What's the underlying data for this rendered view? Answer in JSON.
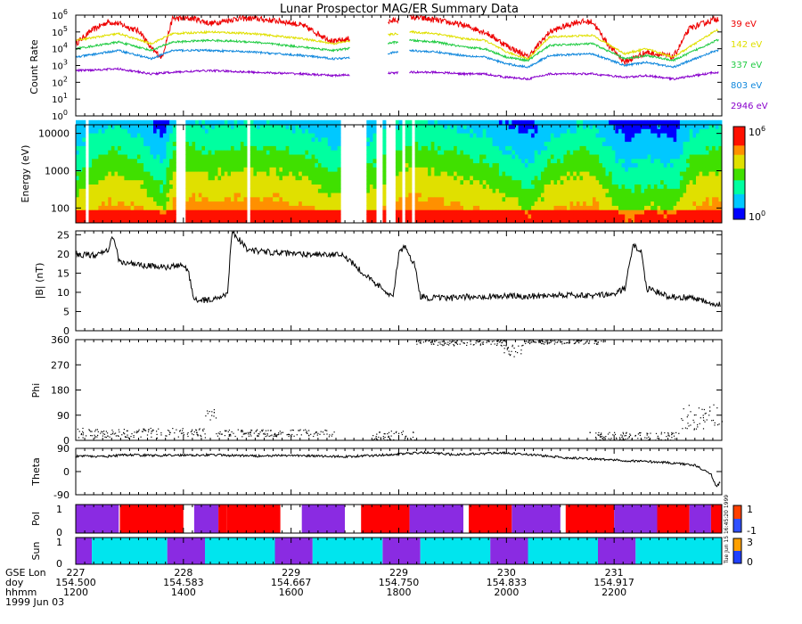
{
  "title": "Lunar Prospector MAG/ER Summary Data",
  "timestamp_side": "Tue Jun 15 16:45:20 1999",
  "footer": {
    "row_labels": [
      "GSE Lon",
      "doy",
      "hhmm",
      "1999 Jun 03"
    ],
    "gse_lon": [
      "227",
      "228",
      "229",
      "229",
      "230",
      "231"
    ],
    "doy": [
      "154.500",
      "154.583",
      "154.667",
      "154.750",
      "154.833",
      "154.917"
    ],
    "hhmm": [
      "1200",
      "1400",
      "1600",
      "1800",
      "2000",
      "2200"
    ]
  },
  "colors": {
    "e39": "#ee0000",
    "e142": "#e0e000",
    "e337": "#22cc44",
    "e803": "#1188dd",
    "e2946": "#8800cc",
    "pol_pos": "#ff0000",
    "pol_neg": "#8a2be2",
    "sun_day": "#00e5ee",
    "sun_night": "#8a2be2"
  },
  "chart_data": [
    {
      "type": "line",
      "panel": "count-rate",
      "title": "Lunar Prospector MAG/ER Summary Data",
      "ylabel": "Count Rate",
      "y_scale": "log",
      "ylim": [
        1,
        1000000
      ],
      "yticks": [
        "10^0",
        "10^1",
        "10^2",
        "10^3",
        "10^4",
        "10^5",
        "10^6"
      ],
      "x_range_hours": [
        12.0,
        24.0
      ],
      "series": [
        {
          "name": "39 eV",
          "x": [
            12.0,
            12.3,
            12.6,
            12.8,
            13.2,
            13.4,
            13.6,
            13.8,
            14.2,
            14.5,
            15.0,
            15.3,
            15.9,
            16.2,
            16.8,
            17.5,
            17.8,
            18.2,
            18.7,
            19.2,
            19.6,
            20.0,
            20.4,
            20.8,
            21.3,
            21.6,
            21.9,
            22.2,
            22.6,
            23.1,
            23.4,
            23.9
          ],
          "y": [
            4.3,
            5.1,
            5.6,
            5.5,
            5.0,
            4.0,
            3.5,
            5.8,
            5.8,
            5.5,
            5.8,
            5.8,
            5.6,
            5.4,
            4.4,
            4.9,
            5.6,
            5.9,
            5.7,
            5.4,
            5.0,
            4.2,
            3.5,
            5.0,
            5.6,
            5.6,
            4.2,
            3.2,
            3.8,
            3.5,
            5.2,
            5.8
          ]
        },
        {
          "name": "142 eV",
          "x": [
            12.0,
            12.8,
            13.4,
            13.8,
            14.5,
            15.3,
            16.2,
            16.8,
            17.5,
            18.2,
            18.7,
            19.2,
            19.6,
            20.0,
            20.4,
            20.8,
            21.6,
            22.2,
            22.6,
            23.1,
            23.9
          ],
          "y": [
            4.5,
            4.9,
            4.3,
            4.9,
            5.0,
            4.9,
            4.6,
            4.3,
            4.7,
            5.0,
            4.9,
            4.6,
            4.5,
            3.8,
            3.4,
            4.7,
            4.8,
            3.7,
            4.0,
            3.5,
            5.1
          ]
        },
        {
          "name": "337 eV",
          "x": [
            12.0,
            12.8,
            13.4,
            13.8,
            14.5,
            15.3,
            16.2,
            16.8,
            17.5,
            18.2,
            18.7,
            19.2,
            19.6,
            20.0,
            20.4,
            20.8,
            21.6,
            22.2,
            22.6,
            23.1,
            23.9
          ],
          "y": [
            4.0,
            4.4,
            3.9,
            4.4,
            4.5,
            4.4,
            4.1,
            3.9,
            4.2,
            4.5,
            4.4,
            4.1,
            4.0,
            3.5,
            3.3,
            4.2,
            4.3,
            3.4,
            3.6,
            3.3,
            4.5
          ]
        },
        {
          "name": "803 eV",
          "x": [
            12.0,
            12.8,
            13.4,
            13.8,
            14.5,
            15.3,
            16.2,
            16.8,
            17.5,
            18.2,
            18.7,
            19.2,
            19.6,
            20.0,
            20.4,
            20.8,
            21.6,
            22.2,
            22.6,
            23.1,
            23.9
          ],
          "y": [
            3.5,
            3.9,
            3.4,
            3.9,
            3.9,
            3.8,
            3.6,
            3.4,
            3.6,
            3.9,
            3.8,
            3.6,
            3.5,
            3.1,
            2.9,
            3.6,
            3.7,
            3.0,
            3.2,
            2.9,
            3.9
          ]
        },
        {
          "name": "2946 eV",
          "x": [
            12.0,
            12.8,
            13.4,
            13.8,
            14.5,
            15.3,
            16.2,
            16.8,
            17.5,
            18.2,
            18.7,
            19.2,
            19.6,
            20.0,
            20.4,
            20.8,
            21.6,
            22.2,
            22.6,
            23.1,
            23.9
          ],
          "y": [
            2.7,
            2.8,
            2.5,
            2.6,
            2.7,
            2.6,
            2.5,
            2.4,
            2.5,
            2.6,
            2.6,
            2.5,
            2.5,
            2.3,
            2.2,
            2.5,
            2.5,
            2.3,
            2.4,
            2.2,
            2.6
          ]
        }
      ],
      "gaps_hours": [
        [
          17.1,
          17.5
        ],
        [
          17.5,
          17.8
        ],
        [
          18.0,
          18.2
        ]
      ]
    },
    {
      "type": "heatmap",
      "panel": "energy-spectrogram",
      "ylabel": "Energy (eV)",
      "y_scale": "log",
      "ylim": [
        40,
        17000
      ],
      "yticks": [
        "100",
        "1000",
        "10000"
      ],
      "colorbar": {
        "scale": "log",
        "min_label": "10^0",
        "max_label": "10^6"
      },
      "x_range_hours": [
        12.0,
        24.0
      ],
      "gaps_hours": [
        [
          12.15,
          12.2
        ],
        [
          12.75,
          12.78
        ],
        [
          13.85,
          14.0
        ],
        [
          15.18,
          15.2
        ],
        [
          16.22,
          16.24
        ],
        [
          16.9,
          17.4
        ],
        [
          17.55,
          17.65
        ],
        [
          17.7,
          17.9
        ],
        [
          18.05,
          18.1
        ],
        [
          18.2,
          18.25
        ],
        [
          18.32,
          18.35
        ]
      ]
    },
    {
      "type": "line",
      "panel": "b-magnitude",
      "ylabel": "|B| (nT)",
      "ylim": [
        0,
        26
      ],
      "yticks": [
        0,
        5,
        10,
        15,
        20,
        25
      ],
      "x": [
        12.0,
        12.4,
        12.6,
        12.7,
        12.8,
        13.2,
        13.7,
        14.0,
        14.1,
        14.2,
        14.5,
        14.75,
        14.82,
        14.9,
        15.2,
        15.6,
        16.0,
        16.2,
        16.5,
        17.0,
        17.5,
        17.9,
        18.0,
        18.1,
        18.3,
        18.4,
        18.6,
        19.0,
        19.5,
        20.0,
        20.5,
        21.0,
        21.5,
        22.0,
        22.2,
        22.35,
        22.5,
        22.6,
        22.8,
        23.0,
        23.5,
        23.9
      ],
      "y": [
        20,
        19.5,
        21,
        25,
        18,
        17,
        16.5,
        17,
        15,
        8,
        8,
        9,
        10,
        26,
        21,
        20.5,
        20,
        20,
        20,
        19.5,
        13,
        9,
        20,
        22,
        17,
        9,
        8.5,
        8.5,
        9,
        9,
        9,
        9.5,
        9,
        9.5,
        11,
        22,
        21,
        11,
        10,
        9,
        8.5,
        7
      ]
    },
    {
      "type": "scatter",
      "panel": "phi",
      "ylabel": "Phi",
      "ylim": [
        0,
        360
      ],
      "yticks": [
        0,
        90,
        180,
        270,
        360
      ],
      "segments": [
        {
          "x_range": [
            12.0,
            14.4
          ],
          "y_range": [
            10,
            45
          ]
        },
        {
          "x_range": [
            14.4,
            14.6
          ],
          "y_range": [
            75,
            115
          ]
        },
        {
          "x_range": [
            14.6,
            16.8
          ],
          "y_range": [
            15,
            40
          ]
        },
        {
          "x_range": [
            17.5,
            18.3
          ],
          "y_range": [
            2,
            35
          ]
        },
        {
          "x_range": [
            18.3,
            20.0
          ],
          "y_range": [
            340,
            360
          ]
        },
        {
          "x_range": [
            19.9,
            20.3
          ],
          "y_range": [
            300,
            345
          ]
        },
        {
          "x_range": [
            20.3,
            21.8
          ],
          "y_range": [
            345,
            360
          ]
        },
        {
          "x_range": [
            21.5,
            23.2
          ],
          "y_range": [
            2,
            30
          ]
        },
        {
          "x_range": [
            23.2,
            24.0
          ],
          "y_range": [
            40,
            130
          ]
        }
      ]
    },
    {
      "type": "line",
      "panel": "theta",
      "ylabel": "Theta",
      "ylim": [
        -90,
        90
      ],
      "yticks": [
        -90,
        0,
        90
      ],
      "x": [
        12.0,
        12.5,
        13.0,
        13.5,
        14.0,
        14.5,
        15.0,
        15.5,
        16.0,
        16.5,
        17.0,
        17.5,
        18.0,
        18.5,
        19.0,
        19.5,
        20.0,
        20.5,
        21.0,
        21.5,
        22.0,
        22.5,
        23.0,
        23.5,
        23.8,
        23.9,
        24.0
      ],
      "y": [
        60,
        58,
        65,
        62,
        64,
        65,
        62,
        60,
        63,
        60,
        58,
        62,
        68,
        74,
        66,
        70,
        72,
        65,
        55,
        50,
        45,
        40,
        35,
        25,
        -10,
        -60,
        -30
      ]
    },
    {
      "type": "bar",
      "panel": "polarity",
      "ylabel": "Pol",
      "yticks": [
        "0",
        "1"
      ],
      "colorbar": {
        "labels": [
          "1",
          "-1"
        ]
      },
      "segments": [
        {
          "start": 12.0,
          "end": 12.8,
          "value": -1
        },
        {
          "start": 12.8,
          "end": 12.82,
          "value": 0
        },
        {
          "start": 12.82,
          "end": 14.0,
          "value": 1
        },
        {
          "start": 14.0,
          "end": 14.2,
          "value": 0
        },
        {
          "start": 14.2,
          "end": 14.65,
          "value": -1
        },
        {
          "start": 14.65,
          "end": 14.8,
          "value": 1
        },
        {
          "start": 14.8,
          "end": 15.8,
          "value": 1
        },
        {
          "start": 15.8,
          "end": 16.2,
          "value": 0
        },
        {
          "start": 16.2,
          "end": 17.0,
          "value": -1
        },
        {
          "start": 17.0,
          "end": 17.3,
          "value": 0
        },
        {
          "start": 17.3,
          "end": 18.2,
          "value": 1
        },
        {
          "start": 18.2,
          "end": 19.2,
          "value": -1
        },
        {
          "start": 19.2,
          "end": 19.3,
          "value": 0
        },
        {
          "start": 19.3,
          "end": 20.1,
          "value": 1
        },
        {
          "start": 20.1,
          "end": 21.0,
          "value": -1
        },
        {
          "start": 21.0,
          "end": 21.1,
          "value": 0
        },
        {
          "start": 21.1,
          "end": 22.0,
          "value": 1
        },
        {
          "start": 22.0,
          "end": 22.8,
          "value": -1
        },
        {
          "start": 22.8,
          "end": 23.4,
          "value": 1
        },
        {
          "start": 23.4,
          "end": 23.8,
          "value": -1
        },
        {
          "start": 23.8,
          "end": 24.0,
          "value": 1
        }
      ]
    },
    {
      "type": "bar",
      "panel": "sun",
      "ylabel": "Sun",
      "yticks": [
        "0",
        "1"
      ],
      "colorbar": {
        "labels": [
          "3",
          "0"
        ]
      },
      "segments": [
        {
          "start": 12.0,
          "end": 12.3,
          "value": 0
        },
        {
          "start": 12.3,
          "end": 13.7,
          "value": 1
        },
        {
          "start": 13.7,
          "end": 14.4,
          "value": 0
        },
        {
          "start": 14.4,
          "end": 15.7,
          "value": 1
        },
        {
          "start": 15.7,
          "end": 16.4,
          "value": 0
        },
        {
          "start": 16.4,
          "end": 17.7,
          "value": 1
        },
        {
          "start": 17.7,
          "end": 18.4,
          "value": 0
        },
        {
          "start": 18.4,
          "end": 19.7,
          "value": 1
        },
        {
          "start": 19.7,
          "end": 20.4,
          "value": 0
        },
        {
          "start": 20.4,
          "end": 21.7,
          "value": 1
        },
        {
          "start": 21.7,
          "end": 22.4,
          "value": 0
        },
        {
          "start": 22.4,
          "end": 24.0,
          "value": 1
        }
      ]
    }
  ]
}
